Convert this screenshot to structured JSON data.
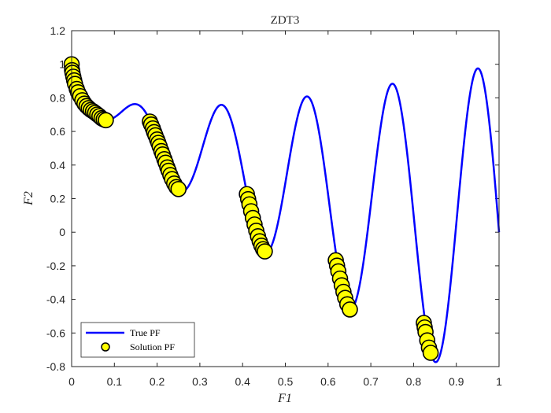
{
  "chart_data": {
    "type": "scatter",
    "title": "ZDT3",
    "xlabel": "F1",
    "ylabel": "F2",
    "xlim": [
      0,
      1
    ],
    "ylim": [
      -0.8,
      1.2
    ],
    "xticks": [
      "0",
      "0.1",
      "0.2",
      "0.3",
      "0.4",
      "0.5",
      "0.6",
      "0.7",
      "0.8",
      "0.9",
      "1"
    ],
    "yticks": [
      "-0.8",
      "-0.6",
      "-0.4",
      "-0.2",
      "0",
      "0.2",
      "0.4",
      "0.6",
      "0.8",
      "1",
      "1.2"
    ],
    "grid": false,
    "legend_position": "bottom-left",
    "series": [
      {
        "name": "True PF",
        "kind": "line",
        "function": "1 - sqrt(x) - x*sin(10*pi*x)",
        "x_range": [
          0,
          1
        ],
        "color": "#0000ff"
      },
      {
        "name": "Solution PF",
        "kind": "scatter",
        "color": "#ffff00",
        "edge_color": "#000000",
        "points": [
          [
            0.0,
            1.0
          ],
          [
            0.001,
            0.965
          ],
          [
            0.002,
            0.949
          ],
          [
            0.004,
            0.926
          ],
          [
            0.006,
            0.904
          ],
          [
            0.008,
            0.883
          ],
          [
            0.012,
            0.853
          ],
          [
            0.015,
            0.833
          ],
          [
            0.02,
            0.81
          ],
          [
            0.025,
            0.786
          ],
          [
            0.03,
            0.766
          ],
          [
            0.035,
            0.751
          ],
          [
            0.04,
            0.739
          ],
          [
            0.045,
            0.728
          ],
          [
            0.05,
            0.72
          ],
          [
            0.055,
            0.711
          ],
          [
            0.06,
            0.701
          ],
          [
            0.065,
            0.691
          ],
          [
            0.07,
            0.679
          ],
          [
            0.075,
            0.672
          ],
          [
            0.08,
            0.667
          ],
          [
            0.183,
            0.659
          ],
          [
            0.186,
            0.641
          ],
          [
            0.19,
            0.618
          ],
          [
            0.193,
            0.596
          ],
          [
            0.196,
            0.577
          ],
          [
            0.2,
            0.552
          ],
          [
            0.203,
            0.532
          ],
          [
            0.206,
            0.511
          ],
          [
            0.21,
            0.483
          ],
          [
            0.213,
            0.463
          ],
          [
            0.217,
            0.435
          ],
          [
            0.22,
            0.414
          ],
          [
            0.224,
            0.386
          ],
          [
            0.227,
            0.366
          ],
          [
            0.231,
            0.34
          ],
          [
            0.235,
            0.316
          ],
          [
            0.24,
            0.29
          ],
          [
            0.245,
            0.269
          ],
          [
            0.25,
            0.257
          ],
          [
            0.41,
            0.227
          ],
          [
            0.413,
            0.197
          ],
          [
            0.416,
            0.166
          ],
          [
            0.42,
            0.125
          ],
          [
            0.424,
            0.085
          ],
          [
            0.428,
            0.046
          ],
          [
            0.432,
            0.009
          ],
          [
            0.436,
            -0.024
          ],
          [
            0.44,
            -0.054
          ],
          [
            0.444,
            -0.08
          ],
          [
            0.448,
            -0.101
          ],
          [
            0.452,
            -0.114
          ],
          [
            0.618,
            -0.167
          ],
          [
            0.621,
            -0.199
          ],
          [
            0.624,
            -0.233
          ],
          [
            0.628,
            -0.276
          ],
          [
            0.632,
            -0.316
          ],
          [
            0.636,
            -0.355
          ],
          [
            0.64,
            -0.391
          ],
          [
            0.645,
            -0.429
          ],
          [
            0.651,
            -0.46
          ],
          [
            0.824,
            -0.54
          ],
          [
            0.826,
            -0.567
          ],
          [
            0.828,
            -0.594
          ],
          [
            0.832,
            -0.644
          ],
          [
            0.836,
            -0.687
          ],
          [
            0.84,
            -0.718
          ]
        ]
      }
    ]
  }
}
